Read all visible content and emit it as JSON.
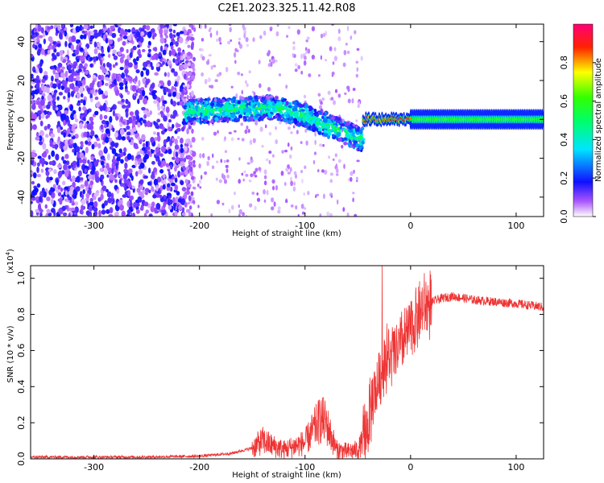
{
  "title": "C2E1.2023.325.11.42.R08",
  "chart_data": [
    {
      "type": "heatmap",
      "xlabel": "Height of straight line (km)",
      "ylabel": "Frequency (Hz)",
      "xlim": [
        -360,
        126
      ],
      "ylim": [
        -50,
        49
      ],
      "xticks": [
        -300,
        -200,
        -100,
        0,
        100
      ],
      "yticks": [
        -40,
        -20,
        0,
        20,
        40
      ],
      "colorbar": {
        "label": "Normalized spectral amplitude",
        "range": [
          0,
          1
        ],
        "ticks": [
          "0.0",
          "0.2",
          "0.4",
          "0.6",
          "0.8"
        ],
        "tick_values": [
          0,
          0.2,
          0.4,
          0.6,
          0.8
        ],
        "colors": [
          "#ffffff",
          "#8800ff",
          "#0000ff",
          "#00ffff",
          "#00ff00",
          "#ffff00",
          "#ff0000",
          "#ff0066"
        ]
      },
      "regions": [
        {
          "x_range": [
            -360,
            -205
          ],
          "frequency_range": [
            -50,
            49
          ],
          "amplitude": 0.1
        },
        {
          "x_range": [
            -215,
            -45
          ],
          "frequency_trend": [
            [
              -215,
              4
            ],
            [
              -130,
              6
            ],
            [
              -100,
              2
            ],
            [
              -70,
              -5
            ],
            [
              -48,
              -10
            ]
          ],
          "amplitude": 0.35
        },
        {
          "x_range": [
            -45,
            0
          ],
          "frequency": 0,
          "amplitude": 0.9
        },
        {
          "x_range": [
            0,
            126
          ],
          "frequency": 0,
          "amplitude": 0.5
        }
      ]
    },
    {
      "type": "line",
      "xlabel": "Height of straight line (km)",
      "ylabel": "SNR (10 * v/v)",
      "y_multiplier": "(x10",
      "y_multiplier_exp": "4",
      "y_multiplier_close": ")",
      "xlim": [
        -360,
        126
      ],
      "ylim": [
        0,
        1.07
      ],
      "xticks": [
        -300,
        -200,
        -100,
        0,
        100
      ],
      "yticks": [
        0.0,
        0.2,
        0.4,
        0.6,
        0.8,
        1.0
      ],
      "ytick_labels": [
        "0.0",
        "0.2",
        "0.4",
        "0.6",
        "0.8",
        "1.0"
      ],
      "series": [
        {
          "color": "#ee3333",
          "x": [
            -360,
            -300,
            -250,
            -200,
            -170,
            -150,
            -140,
            -130,
            -120,
            -100,
            -90,
            -85,
            -80,
            -75,
            -70,
            -60,
            -50,
            -45,
            -40,
            -35,
            -30,
            -25,
            -20,
            -10,
            0,
            10,
            20,
            30,
            40,
            60,
            80,
            100,
            126
          ],
          "y": [
            0.01,
            0.01,
            0.01,
            0.015,
            0.03,
            0.06,
            0.1,
            0.07,
            0.05,
            0.09,
            0.18,
            0.22,
            0.2,
            0.12,
            0.05,
            0.04,
            0.05,
            0.1,
            0.2,
            0.35,
            0.42,
            0.55,
            0.55,
            0.62,
            0.72,
            0.82,
            0.87,
            0.89,
            0.9,
            0.88,
            0.87,
            0.86,
            0.84
          ]
        }
      ]
    }
  ]
}
